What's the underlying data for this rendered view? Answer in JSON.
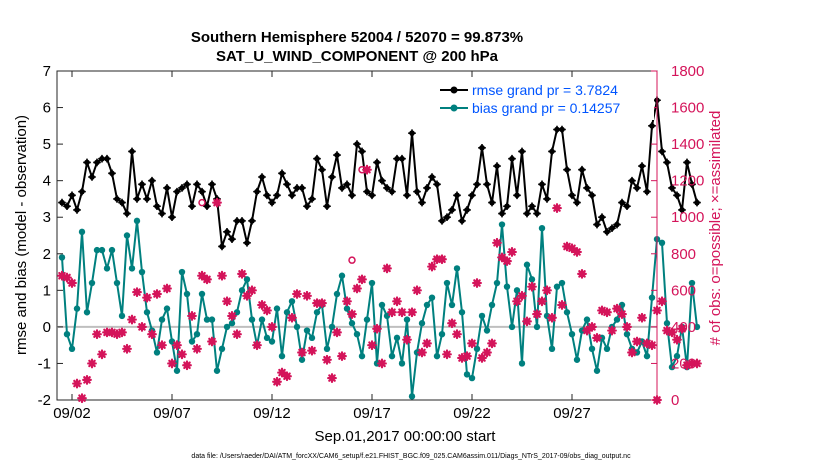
{
  "chart_data": {
    "type": "line",
    "title": "Southern Hemisphere 52004 / 52070 = 99.873%",
    "subtitle": "SAT_U_WIND_COMPONENT @ 200 hPa",
    "xlabel": "Sep.01,2017 00:00:00 start",
    "ylabel": "rmse and bias (model - observation)",
    "y2label": "# of obs: o=possible; ×=assimilated",
    "x_tick_labels": [
      "09/02",
      "09/07",
      "09/12",
      "09/17",
      "09/22",
      "09/27"
    ],
    "x_ticks": [
      1.5,
      6.5,
      11.5,
      16.5,
      21.5,
      26.5
    ],
    "xlim": [
      0.75,
      30.75
    ],
    "ylim": [
      -2,
      7
    ],
    "y_ticks": [
      -2,
      -1,
      0,
      1,
      2,
      3,
      4,
      5,
      6,
      7
    ],
    "y2lim": [
      0,
      1800
    ],
    "y2_ticks": [
      0,
      200,
      400,
      600,
      800,
      1000,
      1200,
      1400,
      1600,
      1800
    ],
    "colors": {
      "rmse": "#000000",
      "bias": "#00807f",
      "obs": "#d4145a",
      "zero": "#bfbfbf",
      "legend_text": "#0055ff"
    },
    "legend": [
      "rmse grand pr = 3.7824",
      "bias grand pr = 0.14257"
    ],
    "footnote": "data file: /Users/raeder/DAI/ATM_forcXX/CAM6_setup/f.e21.FHIST_BGC.f09_025.CAM6assim.011/Diags_NTrS_2017-09/obs_diag_output.nc",
    "series": [
      {
        "name": "rmse",
        "x_start": 1.0,
        "x_step": 0.25,
        "values": [
          3.4,
          3.3,
          3.6,
          3.2,
          3.7,
          4.5,
          4.1,
          4.5,
          4.6,
          4.6,
          4.2,
          3.5,
          3.4,
          3.1,
          4.8,
          3.5,
          3.9,
          3.5,
          4.0,
          3.3,
          3.1,
          3.8,
          3.0,
          3.7,
          3.8,
          3.9,
          3.3,
          3.9,
          3.7,
          3.3,
          3.9,
          3.5,
          2.2,
          2.6,
          2.4,
          2.9,
          2.9,
          2.3,
          2.9,
          3.7,
          4.1,
          3.6,
          3.4,
          3.6,
          4.2,
          3.9,
          3.6,
          3.8,
          3.8,
          3.3,
          3.5,
          4.6,
          4.3,
          3.3,
          4.1,
          4.7,
          3.8,
          3.9,
          3.6,
          5.0,
          4.8,
          3.7,
          3.6,
          4.5,
          4.0,
          3.8,
          3.7,
          4.6,
          4.6,
          3.6,
          5.3,
          3.7,
          3.4,
          3.8,
          4.1,
          3.9,
          2.9,
          3.0,
          3.2,
          3.6,
          2.9,
          3.2,
          3.6,
          3.9,
          4.9,
          3.9,
          3.4,
          4.4,
          3.1,
          3.3,
          4.6,
          3.6,
          4.8,
          3.1,
          3.3,
          3.1,
          3.9,
          3.5,
          4.8,
          5.4,
          5.4,
          4.3,
          3.6,
          3.4,
          4.3,
          3.8,
          3.6,
          2.8,
          3.0,
          2.6,
          2.7,
          2.8,
          3.4,
          3.3,
          4.0,
          3.8,
          4.4,
          3.7,
          5.5,
          6.2,
          4.8,
          4.5,
          3.8,
          3.6,
          3.2,
          4.5,
          3.9,
          3.4
        ]
      },
      {
        "name": "bias",
        "x_start": 1.0,
        "x_step": 0.25,
        "values": [
          1.9,
          -0.2,
          -0.6,
          0.5,
          2.6,
          0.4,
          1.2,
          2.1,
          2.1,
          1.6,
          2.1,
          1.2,
          0.3,
          2.5,
          1.6,
          2.9,
          1.5,
          0.4,
          -0.1,
          -0.7,
          0.2,
          0.5,
          -0.4,
          -1.2,
          1.5,
          0.9,
          -0.4,
          -0.2,
          0.9,
          0.2,
          0.2,
          -1.2,
          -0.6,
          0.0,
          0.1,
          0.4,
          1.0,
          1.3,
          0.2,
          -0.5,
          0.2,
          -0.3,
          -0.4,
          0.5,
          -0.8,
          0.4,
          0.7,
          0.0,
          -0.9,
          -0.1,
          -0.3,
          0.4,
          0.6,
          -0.6,
          0.0,
          0.9,
          1.4,
          0.5,
          0.1,
          -0.2,
          -0.8,
          0.2,
          1.2,
          -1.0,
          0.6,
          0.3,
          -0.8,
          -0.3,
          -1.0,
          0.2,
          -1.9,
          -0.7,
          0.1,
          0.6,
          0.8,
          -0.8,
          -0.2,
          1.2,
          0.6,
          1.6,
          0.4,
          -1.3,
          -1.4,
          -0.6,
          0.3,
          -0.1,
          0.6,
          1.2,
          2.8,
          1.1,
          0.0,
          1.0,
          -1.0,
          1.7,
          1.3,
          0.0,
          2.7,
          0.3,
          -0.6,
          1.1,
          1.2,
          0.4,
          -0.2,
          -0.9,
          -0.1,
          0.2,
          -0.6,
          -1.2,
          -0.3,
          -0.6,
          0.0,
          0.2,
          0.6,
          -0.2,
          -0.6,
          -0.7,
          -0.4,
          -0.8,
          0.8,
          2.4,
          2.3,
          0.1,
          -1.1,
          -0.8,
          0.0,
          -1.1,
          1.2,
          0.0
        ]
      },
      {
        "name": "obs_assimilated",
        "x_start": 1.0,
        "x_step": 0.25,
        "values": [
          680,
          670,
          640,
          90,
          10,
          110,
          200,
          360,
          250,
          370,
          370,
          360,
          370,
          280,
          440,
          590,
          400,
          560,
          360,
          580,
          300,
          610,
          200,
          300,
          250,
          190,
          460,
          280,
          680,
          660,
          320,
          1080,
          680,
          540,
          460,
          360,
          690,
          570,
          600,
          300,
          520,
          490,
          400,
          100,
          150,
          130,
          450,
          580,
          260,
          570,
          270,
          530,
          530,
          220,
          120,
          370,
          240,
          540,
          470,
          610,
          660,
          1260,
          300,
          390,
          200,
          720,
          480,
          540,
          480,
          330,
          480,
          600,
          260,
          310,
          730,
          770,
          770,
          250,
          420,
          360,
          230,
          240,
          310,
          640,
          230,
          260,
          310,
          860,
          780,
          760,
          810,
          540,
          570,
          430,
          620,
          470,
          540,
          600,
          450,
          1050,
          520,
          840,
          830,
          810,
          690,
          380,
          400,
          340,
          490,
          480,
          380,
          500,
          470,
          400,
          260,
          320,
          450,
          310,
          300,
          490,
          540,
          380,
          370,
          330,
          390,
          190,
          200,
          200
        ]
      },
      {
        "name": "obs_possible",
        "points": [
          [
            8.0,
            1080
          ],
          [
            16.0,
            1260
          ],
          [
            15.5,
            765
          ]
        ]
      }
    ],
    "last_assimilated_point": {
      "x": 30.75,
      "value": 0
    }
  }
}
